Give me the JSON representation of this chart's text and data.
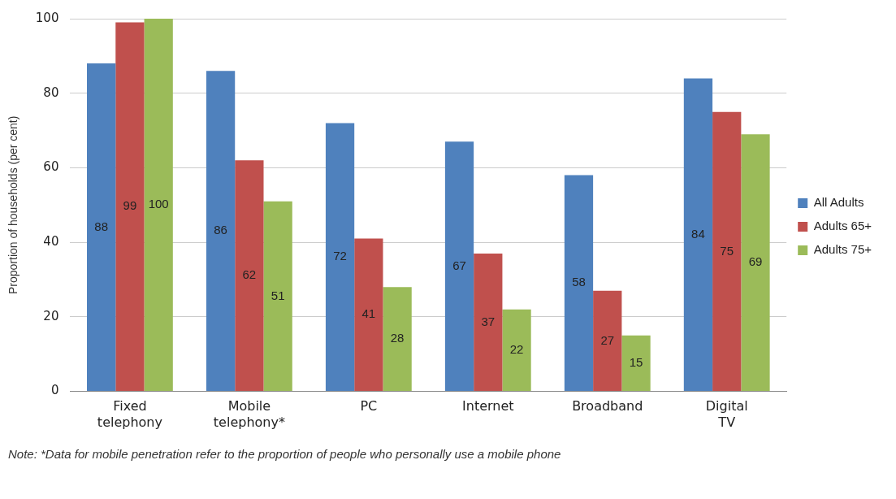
{
  "chart_data": {
    "type": "bar",
    "ylabel": "Proportion of households (per cent)",
    "categories": [
      "Fixed telephony",
      "Mobile telephony*",
      "PC",
      "Internet",
      "Broadband",
      "Digital TV"
    ],
    "series": [
      {
        "name": "All Adults",
        "color": "#4f81bd",
        "values": [
          88,
          86,
          72,
          67,
          58,
          84
        ]
      },
      {
        "name": "Adults 65+",
        "color": "#c0504d",
        "values": [
          99,
          62,
          41,
          37,
          27,
          75
        ]
      },
      {
        "name": "Adults 75+",
        "color": "#9bbb59",
        "values": [
          100,
          51,
          28,
          22,
          15,
          69
        ]
      }
    ],
    "ylim": [
      0,
      100
    ],
    "yticks": [
      0,
      20,
      40,
      60,
      80,
      100
    ],
    "grid": "y",
    "legend": "right",
    "data_labels": true,
    "annotations": [
      "Note: *Data for mobile penetration refer to the proportion of people who personally use a mobile phone"
    ]
  }
}
